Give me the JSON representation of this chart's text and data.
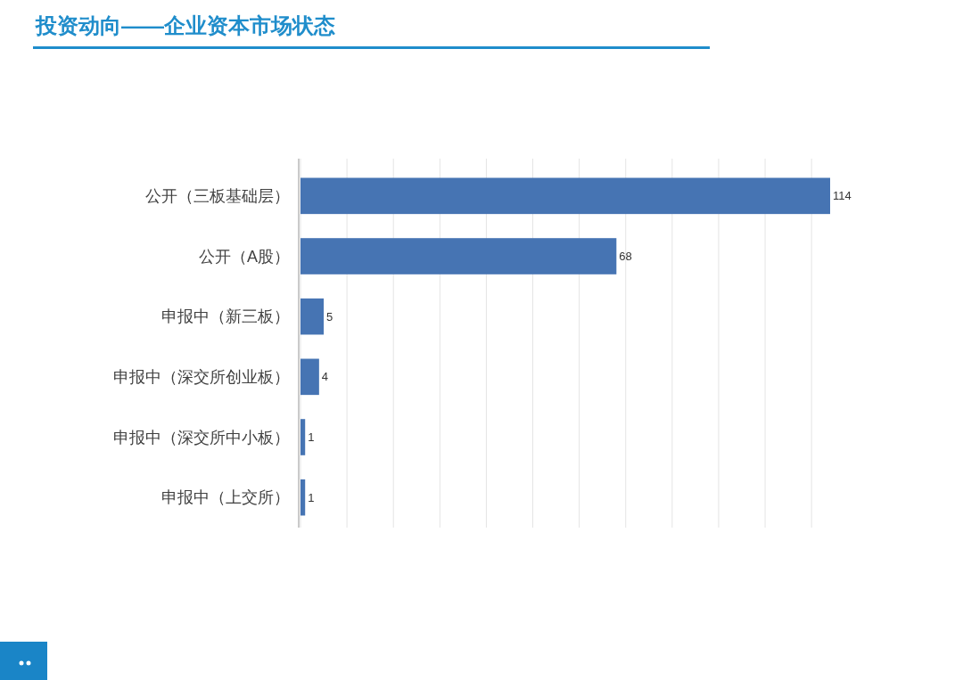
{
  "chart_data": {
    "type": "bar",
    "orientation": "horizontal",
    "title": "投资动向——企业资本市场状态",
    "categories": [
      "公开（三板基础层）",
      "公开（A股）",
      "申报中（新三板）",
      "申报中（深交所创业板）",
      "申报中（深交所中小板）",
      "申报中（上交所）"
    ],
    "values": [
      114,
      68,
      5,
      4,
      1,
      1
    ],
    "color": "#4674b3",
    "xticks": [
      {
        "value": 0,
        "label": null
      },
      {
        "value": 10,
        "label": null
      },
      {
        "value": 20,
        "label": null
      },
      {
        "value": 30,
        "label": null
      },
      {
        "value": 40,
        "label": null
      },
      {
        "value": 50,
        "label": null
      },
      {
        "value": 60,
        "label": null
      },
      {
        "value": 70,
        "label": null
      },
      {
        "value": 80,
        "label": null
      },
      {
        "value": 90,
        "label": null
      },
      {
        "value": 100,
        "label": null
      },
      {
        "value": 110,
        "label": null
      }
    ],
    "tick_labels": "y",
    "grid": "x",
    "data_labels": true
  }
}
